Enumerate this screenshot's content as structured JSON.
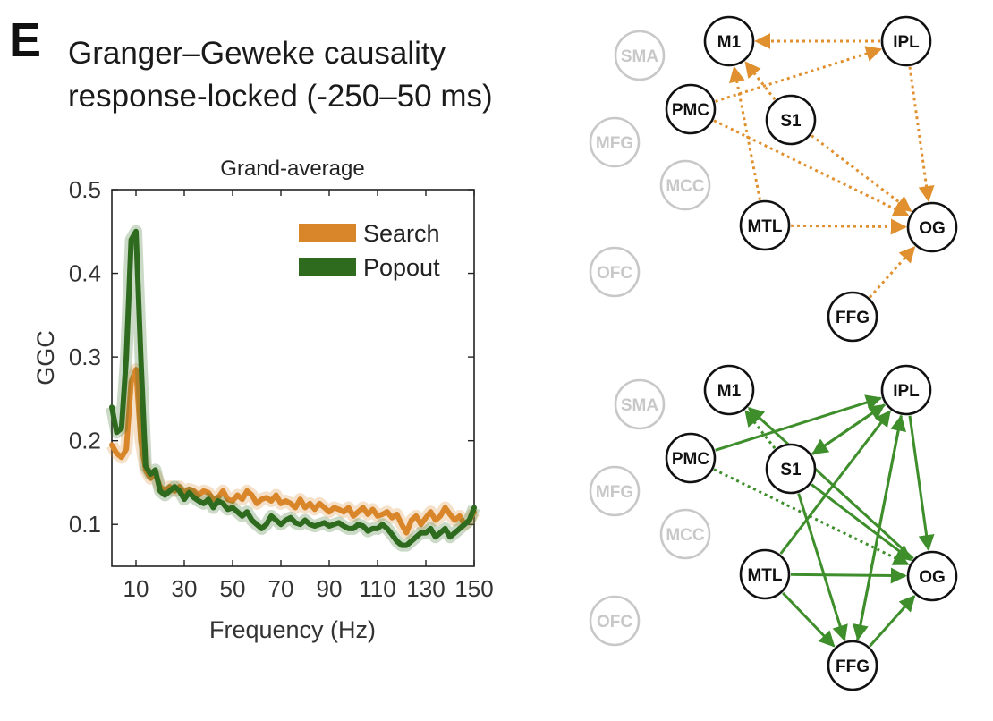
{
  "panel": {
    "letter": "E",
    "title_line1": "Granger–Geweke causality",
    "title_line2": "response-locked (-250–50 ms)"
  },
  "colors": {
    "search": "#D9862B",
    "popout": "#2F6B1F",
    "network_orange": "#E0902E",
    "network_green": "#3E8E2B",
    "inactive_node": "#c8c8c8"
  },
  "chart_data": {
    "type": "line",
    "title": "Grand-average",
    "xlabel": "Frequency (Hz)",
    "ylabel": "GGC",
    "xlim": [
      0,
      150
    ],
    "ylim": [
      0.05,
      0.5
    ],
    "xticks": [
      10,
      30,
      50,
      70,
      90,
      110,
      130,
      150
    ],
    "yticks": [
      0.1,
      0.2,
      0.3,
      0.4,
      0.5
    ],
    "legend_position": "top-right",
    "series": [
      {
        "name": "Search",
        "color_key": "search",
        "x": [
          0,
          2,
          4,
          6,
          8,
          10,
          12,
          14,
          16,
          18,
          20,
          22,
          24,
          26,
          28,
          30,
          32,
          34,
          36,
          38,
          40,
          42,
          44,
          46,
          48,
          50,
          52,
          54,
          56,
          58,
          60,
          62,
          64,
          66,
          68,
          70,
          72,
          74,
          76,
          78,
          80,
          82,
          84,
          86,
          88,
          90,
          92,
          94,
          96,
          98,
          100,
          102,
          104,
          106,
          108,
          110,
          112,
          114,
          116,
          118,
          120,
          122,
          124,
          126,
          128,
          130,
          132,
          134,
          136,
          138,
          140,
          142,
          144,
          146,
          148,
          150
        ],
        "y": [
          0.195,
          0.185,
          0.18,
          0.19,
          0.27,
          0.285,
          0.2,
          0.165,
          0.155,
          0.16,
          0.145,
          0.14,
          0.145,
          0.14,
          0.145,
          0.138,
          0.142,
          0.14,
          0.135,
          0.14,
          0.138,
          0.13,
          0.132,
          0.14,
          0.13,
          0.128,
          0.135,
          0.13,
          0.14,
          0.135,
          0.125,
          0.13,
          0.132,
          0.128,
          0.135,
          0.125,
          0.128,
          0.125,
          0.12,
          0.13,
          0.12,
          0.125,
          0.118,
          0.125,
          0.12,
          0.115,
          0.12,
          0.118,
          0.115,
          0.12,
          0.11,
          0.115,
          0.12,
          0.112,
          0.118,
          0.11,
          0.112,
          0.115,
          0.108,
          0.112,
          0.1,
          0.09,
          0.105,
          0.11,
          0.1,
          0.108,
          0.115,
          0.105,
          0.11,
          0.12,
          0.112,
          0.105,
          0.11,
          0.1,
          0.105,
          0.115
        ]
      },
      {
        "name": "Popout",
        "color_key": "popout",
        "x": [
          0,
          2,
          4,
          6,
          8,
          10,
          12,
          14,
          16,
          18,
          20,
          22,
          24,
          26,
          28,
          30,
          32,
          34,
          36,
          38,
          40,
          42,
          44,
          46,
          48,
          50,
          52,
          54,
          56,
          58,
          60,
          62,
          64,
          66,
          68,
          70,
          72,
          74,
          76,
          78,
          80,
          82,
          84,
          86,
          88,
          90,
          92,
          94,
          96,
          98,
          100,
          102,
          104,
          106,
          108,
          110,
          112,
          114,
          116,
          118,
          120,
          122,
          124,
          126,
          128,
          130,
          132,
          134,
          136,
          138,
          140,
          142,
          144,
          146,
          148,
          150
        ],
        "y": [
          0.24,
          0.21,
          0.215,
          0.3,
          0.44,
          0.45,
          0.3,
          0.17,
          0.16,
          0.165,
          0.14,
          0.135,
          0.14,
          0.145,
          0.14,
          0.13,
          0.138,
          0.132,
          0.128,
          0.125,
          0.13,
          0.12,
          0.128,
          0.125,
          0.118,
          0.12,
          0.115,
          0.11,
          0.115,
          0.105,
          0.1,
          0.095,
          0.1,
          0.11,
          0.105,
          0.1,
          0.105,
          0.108,
          0.102,
          0.1,
          0.105,
          0.1,
          0.098,
          0.1,
          0.102,
          0.098,
          0.1,
          0.102,
          0.098,
          0.095,
          0.095,
          0.1,
          0.098,
          0.092,
          0.095,
          0.095,
          0.1,
          0.095,
          0.088,
          0.08,
          0.075,
          0.075,
          0.08,
          0.085,
          0.09,
          0.09,
          0.095,
          0.085,
          0.09,
          0.095,
          0.085,
          0.09,
          0.095,
          0.1,
          0.105,
          0.12
        ]
      }
    ]
  },
  "networks": {
    "nodes": [
      "M1",
      "IPL",
      "SMA",
      "PMC",
      "S1",
      "MFG",
      "MCC",
      "MTL",
      "OG",
      "OFC",
      "FFG"
    ],
    "inactive": [
      "SMA",
      "MFG",
      "MCC",
      "OFC"
    ],
    "search": {
      "color_key": "network_orange",
      "edges": [
        {
          "from": "IPL",
          "to": "M1",
          "style": "dotted"
        },
        {
          "from": "PMC",
          "to": "IPL",
          "style": "dotted"
        },
        {
          "from": "S1",
          "to": "M1",
          "style": "dotted"
        },
        {
          "from": "MTL",
          "to": "M1",
          "style": "dotted"
        },
        {
          "from": "IPL",
          "to": "OG",
          "style": "dotted"
        },
        {
          "from": "PMC",
          "to": "OG",
          "style": "dotted"
        },
        {
          "from": "S1",
          "to": "OG",
          "style": "dotted"
        },
        {
          "from": "MTL",
          "to": "OG",
          "style": "dotted"
        },
        {
          "from": "FFG",
          "to": "OG",
          "style": "dotted"
        }
      ]
    },
    "popout": {
      "color_key": "network_green",
      "edges": [
        {
          "from": "PMC",
          "to": "IPL",
          "style": "solid"
        },
        {
          "from": "S1",
          "to": "M1",
          "style": "dotted"
        },
        {
          "from": "OG",
          "to": "M1",
          "style": "solid"
        },
        {
          "from": "S1",
          "to": "IPL",
          "style": "solid"
        },
        {
          "from": "IPL",
          "to": "S1",
          "style": "solid"
        },
        {
          "from": "IPL",
          "to": "OG",
          "style": "solid"
        },
        {
          "from": "PMC",
          "to": "OG",
          "style": "dotted"
        },
        {
          "from": "S1",
          "to": "OG",
          "style": "solid"
        },
        {
          "from": "MTL",
          "to": "IPL",
          "style": "solid"
        },
        {
          "from": "MTL",
          "to": "OG",
          "style": "solid"
        },
        {
          "from": "MTL",
          "to": "FFG",
          "style": "solid"
        },
        {
          "from": "S1",
          "to": "FFG",
          "style": "solid"
        },
        {
          "from": "IPL",
          "to": "FFG",
          "style": "solid"
        },
        {
          "from": "FFG",
          "to": "IPL",
          "style": "solid"
        },
        {
          "from": "FFG",
          "to": "OG",
          "style": "solid"
        }
      ]
    }
  }
}
